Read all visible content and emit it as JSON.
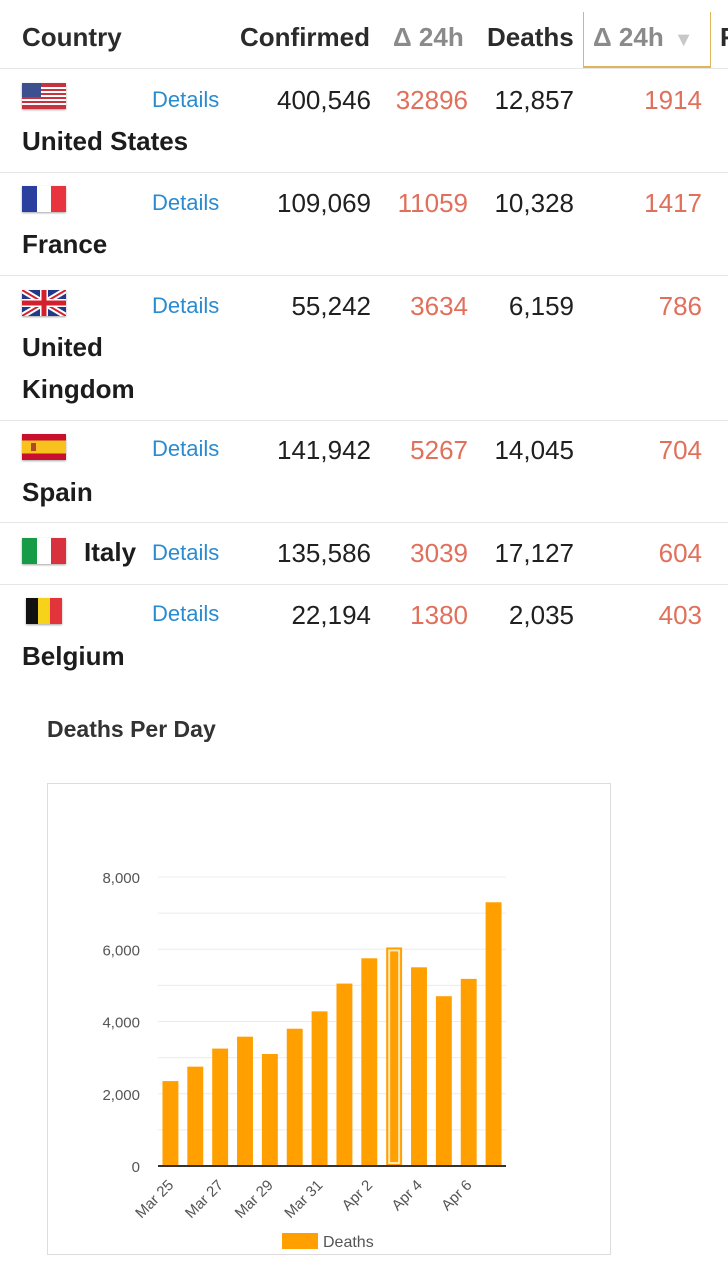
{
  "table": {
    "headers": {
      "country": "Country",
      "confirmed": "Confirmed",
      "delta_confirmed": "Δ 24h",
      "deaths": "Deaths",
      "delta_deaths": "Δ 24h",
      "next_partial": "F"
    },
    "details_label": "Details",
    "rows": [
      {
        "country": "United States",
        "flag": "us-flag-icon",
        "confirmed": "400,546",
        "delta_confirmed": "32896",
        "deaths": "12,857",
        "delta_deaths": "1914"
      },
      {
        "country": "France",
        "flag": "fr-flag-icon",
        "confirmed": "109,069",
        "delta_confirmed": "11059",
        "deaths": "10,328",
        "delta_deaths": "1417"
      },
      {
        "country_line1": "United",
        "country_line2": "Kingdom",
        "flag": "uk-flag-icon",
        "confirmed": "55,242",
        "delta_confirmed": "3634",
        "deaths": "6,159",
        "delta_deaths": "786"
      },
      {
        "country": "Spain",
        "flag": "es-flag-icon",
        "confirmed": "141,942",
        "delta_confirmed": "5267",
        "deaths": "14,045",
        "delta_deaths": "704"
      },
      {
        "country": "Italy",
        "flag": "it-flag-icon",
        "confirmed": "135,586",
        "delta_confirmed": "3039",
        "deaths": "17,127",
        "delta_deaths": "604"
      },
      {
        "country": "Belgium",
        "flag": "be-flag-icon",
        "confirmed": "22,194",
        "delta_confirmed": "1380",
        "deaths": "2,035",
        "delta_deaths": "403"
      }
    ],
    "colors": {
      "delta": "#e0705c",
      "details_link": "#2a8bd0",
      "sorted_outline": "#e0b45c"
    }
  },
  "chart_title": "Deaths Per Day",
  "chart_data": {
    "type": "bar",
    "categories": [
      "Mar 25",
      "Mar 26",
      "Mar 27",
      "Mar 28",
      "Mar 29",
      "Mar 30",
      "Mar 31",
      "Apr 1",
      "Apr 2",
      "Apr 3",
      "Apr 4",
      "Apr 5",
      "Apr 6",
      "Apr 7"
    ],
    "x_tick_labels": [
      "Mar 25",
      "Mar 27",
      "Mar 29",
      "Mar 31",
      "Apr 2",
      "Apr 4",
      "Apr 6"
    ],
    "series": [
      {
        "name": "Deaths",
        "color": "#ff9f00",
        "values": [
          2350,
          2750,
          3250,
          3580,
          3100,
          3800,
          4280,
          5050,
          5750,
          6050,
          5500,
          4700,
          5180,
          7300
        ]
      }
    ],
    "highlighted_index": 9,
    "yticks": [
      "0",
      "2,000",
      "4,000",
      "6,000",
      "8,000"
    ],
    "ylim": [
      0,
      8000
    ],
    "grid": true,
    "legend": "bottom"
  }
}
